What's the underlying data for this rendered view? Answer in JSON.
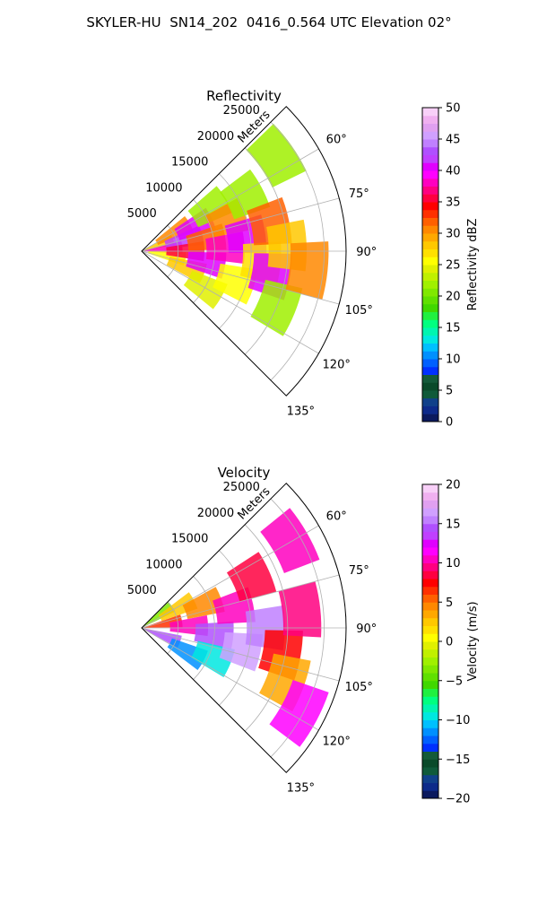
{
  "figure": {
    "title": "SKYLER-HU  SN14_202  0416_0.564 UTC Elevation 02°"
  },
  "colors": {
    "reflectivity_scale": [
      "#0b1a5e",
      "#0d2a8a",
      "#10408a",
      "#0f5a3a",
      "#0a4a2a",
      "#145a3a",
      "#0030ff",
      "#0060ff",
      "#0090ff",
      "#00c0ff",
      "#00e8e0",
      "#00f5b0",
      "#00ff80",
      "#20f040",
      "#40d800",
      "#60e000",
      "#80e800",
      "#a0f000",
      "#c0f000",
      "#e0f000",
      "#ffff00",
      "#ffe000",
      "#ffc800",
      "#ffa800",
      "#ff8800",
      "#ff6000",
      "#ff3000",
      "#ff0000",
      "#ff0040",
      "#ff0080",
      "#ff00c0",
      "#ff00ff",
      "#e000ff",
      "#c040ff",
      "#b050ff",
      "#c080ff",
      "#d0a0ff",
      "#e0a0f0",
      "#f0b0f0",
      "#f8d0f8"
    ],
    "velocity_scale": [
      "#0b1a5e",
      "#0d2a8a",
      "#10408a",
      "#0f5a3a",
      "#0a4a2a",
      "#145a3a",
      "#0030ff",
      "#0060ff",
      "#0090ff",
      "#00c0ff",
      "#00e8e0",
      "#00f5b0",
      "#00ff80",
      "#20f040",
      "#40d800",
      "#60e000",
      "#80e800",
      "#a0f000",
      "#c0f000",
      "#e0f000",
      "#ffff00",
      "#ffe000",
      "#ffc800",
      "#ffa800",
      "#ff8800",
      "#ff6000",
      "#ff3000",
      "#ff0000",
      "#ff0040",
      "#ff0080",
      "#ff00c0",
      "#ff00ff",
      "#e000ff",
      "#c040ff",
      "#b050ff",
      "#c080ff",
      "#d0a0ff",
      "#e0a0f0",
      "#f0b0f0",
      "#f8d0f8"
    ]
  },
  "chart_data": [
    {
      "type": "heatmap",
      "projection": "polar sector",
      "title": "Reflectivity",
      "radial_label": "Meters",
      "radial_ticks": [
        5000,
        10000,
        15000,
        20000,
        25000
      ],
      "radial_tick_labels": [
        "5000",
        "10000",
        "15000",
        "20000",
        "25000"
      ],
      "rmax": 28000,
      "theta_range_deg": [
        45,
        135
      ],
      "theta_ticks_deg": [
        60,
        75,
        90,
        105,
        120,
        135
      ],
      "theta_tick_labels": [
        "60°",
        "75°",
        "90°",
        "105°",
        "120°",
        "135°"
      ],
      "grid": true,
      "colorbar": {
        "label": "Reflectivity dBZ",
        "range": [
          0,
          50
        ],
        "ticks": [
          "0",
          "5",
          "10",
          "15",
          "20",
          "25",
          "30",
          "35",
          "40",
          "45",
          "50"
        ]
      },
      "cells": [
        {
          "r": 2000,
          "t": 70,
          "v": 28
        },
        {
          "r": 3000,
          "t": 85,
          "v": 38
        },
        {
          "r": 3500,
          "t": 100,
          "v": 26
        },
        {
          "r": 5000,
          "t": 60,
          "v": 30
        },
        {
          "r": 6000,
          "t": 75,
          "v": 42
        },
        {
          "r": 6000,
          "t": 90,
          "v": 35
        },
        {
          "r": 6500,
          "t": 110,
          "v": 28
        },
        {
          "r": 8000,
          "t": 65,
          "v": 40
        },
        {
          "r": 9000,
          "t": 80,
          "v": 32
        },
        {
          "r": 9000,
          "t": 100,
          "v": 40
        },
        {
          "r": 10000,
          "t": 120,
          "v": 24
        },
        {
          "r": 11000,
          "t": 58,
          "v": 22
        },
        {
          "r": 11500,
          "t": 88,
          "v": 38
        },
        {
          "r": 12500,
          "t": 70,
          "v": 30
        },
        {
          "r": 13500,
          "t": 108,
          "v": 26
        },
        {
          "r": 14500,
          "t": 82,
          "v": 41
        },
        {
          "r": 16000,
          "t": 62,
          "v": 22
        },
        {
          "r": 16500,
          "t": 95,
          "v": 27
        },
        {
          "r": 18000,
          "t": 100,
          "v": 40
        },
        {
          "r": 18000,
          "t": 78,
          "v": 32
        },
        {
          "r": 20000,
          "t": 88,
          "v": 28
        },
        {
          "r": 20000,
          "t": 112,
          "v": 22
        },
        {
          "r": 22500,
          "t": 55,
          "v": 22
        },
        {
          "r": 23000,
          "t": 96,
          "v": 30
        }
      ]
    },
    {
      "type": "heatmap",
      "projection": "polar sector",
      "title": "Velocity",
      "radial_label": "Meters",
      "radial_ticks": [
        5000,
        10000,
        15000,
        20000,
        25000
      ],
      "radial_tick_labels": [
        "5000",
        "10000",
        "15000",
        "20000",
        "25000"
      ],
      "rmax": 28000,
      "theta_range_deg": [
        45,
        135
      ],
      "theta_ticks_deg": [
        60,
        75,
        90,
        105,
        120,
        135
      ],
      "theta_tick_labels": [
        "60°",
        "75°",
        "90°",
        "105°",
        "120°",
        "135°"
      ],
      "grid": true,
      "colorbar": {
        "label": "Velocity (m/s)",
        "range": [
          -20,
          20
        ],
        "ticks": [
          "−20",
          "−15",
          "−10",
          "−5",
          "0",
          "5",
          "10",
          "15",
          "20"
        ]
      },
      "cells": [
        {
          "r": 2500,
          "t": 55,
          "v": -4
        },
        {
          "r": 3000,
          "t": 80,
          "v": 6
        },
        {
          "r": 3000,
          "t": 110,
          "v": 14
        },
        {
          "r": 5500,
          "t": 62,
          "v": 2
        },
        {
          "r": 6500,
          "t": 88,
          "v": 10
        },
        {
          "r": 7000,
          "t": 118,
          "v": -12
        },
        {
          "r": 9000,
          "t": 70,
          "v": 4
        },
        {
          "r": 10000,
          "t": 95,
          "v": 14
        },
        {
          "r": 10500,
          "t": 112,
          "v": -10
        },
        {
          "r": 13000,
          "t": 78,
          "v": 10
        },
        {
          "r": 14000,
          "t": 102,
          "v": 16
        },
        {
          "r": 16500,
          "t": 66,
          "v": 8
        },
        {
          "r": 17000,
          "t": 90,
          "v": 15
        },
        {
          "r": 19500,
          "t": 100,
          "v": 7
        },
        {
          "r": 21000,
          "t": 110,
          "v": 3
        },
        {
          "r": 22000,
          "t": 84,
          "v": 9
        },
        {
          "r": 23500,
          "t": 60,
          "v": 10
        },
        {
          "r": 24500,
          "t": 118,
          "v": 11
        }
      ]
    }
  ]
}
